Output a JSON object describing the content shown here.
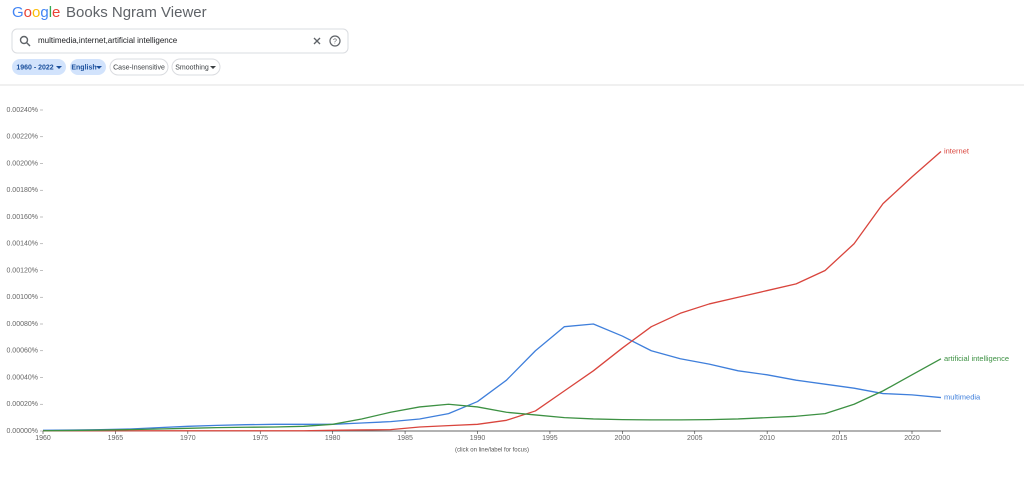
{
  "header": {
    "logo": "Google",
    "title": "Books Ngram Viewer"
  },
  "search": {
    "query": "multimedia,internet,artificial intelligence"
  },
  "chips": [
    "1960 - 2022",
    "English",
    "Case-Insensitive",
    "Smoothing"
  ],
  "chart_data": {
    "type": "line",
    "footnote": "(click on line/label for focus)",
    "x": [
      1960,
      1962,
      1964,
      1966,
      1968,
      1970,
      1972,
      1974,
      1976,
      1978,
      1980,
      1982,
      1984,
      1986,
      1988,
      1990,
      1992,
      1994,
      1996,
      1998,
      2000,
      2002,
      2004,
      2006,
      2008,
      2010,
      2012,
      2014,
      2016,
      2018,
      2020,
      2022
    ],
    "xlim": [
      1960,
      2022
    ],
    "xticks": [
      1960,
      1965,
      1970,
      1975,
      1980,
      1985,
      1990,
      1995,
      2000,
      2005,
      2010,
      2015,
      2020
    ],
    "ylim": [
      0,
      0.0024
    ],
    "yticks": [
      {
        "value": 0,
        "label": "0.00000%"
      },
      {
        "value": 0.0002,
        "label": "0.00020%"
      },
      {
        "value": 0.0004,
        "label": "0.00040%"
      },
      {
        "value": 0.0006,
        "label": "0.00060%"
      },
      {
        "value": 0.0008,
        "label": "0.00080%"
      },
      {
        "value": 0.001,
        "label": "0.00100%"
      },
      {
        "value": 0.0012,
        "label": "0.00120%"
      },
      {
        "value": 0.0014,
        "label": "0.00140%"
      },
      {
        "value": 0.0016,
        "label": "0.00160%"
      },
      {
        "value": 0.0018,
        "label": "0.00180%"
      },
      {
        "value": 0.002,
        "label": "0.00200%"
      },
      {
        "value": 0.0022,
        "label": "0.00220%"
      },
      {
        "value": 0.0024,
        "label": "0.00240%"
      }
    ],
    "series": [
      {
        "name": "multimedia",
        "color": "#3f7fdb",
        "values": [
          5e-06,
          7e-06,
          1e-05,
          1.5e-05,
          2.5e-05,
          3.5e-05,
          4.2e-05,
          4.7e-05,
          5e-05,
          5e-05,
          5e-05,
          6e-05,
          7e-05,
          9e-05,
          0.00013,
          0.00022,
          0.00038,
          0.0006,
          0.00078,
          0.0008,
          0.00071,
          0.0006,
          0.00054,
          0.0005,
          0.00045,
          0.00042,
          0.00038,
          0.00035,
          0.00032,
          0.00028,
          0.00027,
          0.00025
        ]
      },
      {
        "name": "internet",
        "color": "#d9453d",
        "values": [
          2e-06,
          2e-06,
          2e-06,
          2e-06,
          2e-06,
          2e-06,
          2e-06,
          2e-06,
          2e-06,
          2e-06,
          5e-06,
          8e-06,
          1e-05,
          3e-05,
          4e-05,
          5e-05,
          8e-05,
          0.00015,
          0.0003,
          0.00045,
          0.00062,
          0.00078,
          0.00088,
          0.00095,
          0.001,
          0.00105,
          0.0011,
          0.0012,
          0.0014,
          0.0017,
          0.0019,
          0.00209
        ]
      },
      {
        "name": "artificial intelligence",
        "color": "#3d9143",
        "values": [
          2e-06,
          4e-06,
          7e-06,
          1e-05,
          1.5e-05,
          2e-05,
          2.5e-05,
          2.8e-05,
          3e-05,
          3.5e-05,
          5e-05,
          9e-05,
          0.00014,
          0.00018,
          0.0002,
          0.00018,
          0.00014,
          0.00012,
          0.0001,
          9e-05,
          8.5e-05,
          8.3e-05,
          8.3e-05,
          8.5e-05,
          9e-05,
          0.0001,
          0.00011,
          0.00013,
          0.0002,
          0.0003,
          0.00042,
          0.00054
        ]
      }
    ]
  }
}
